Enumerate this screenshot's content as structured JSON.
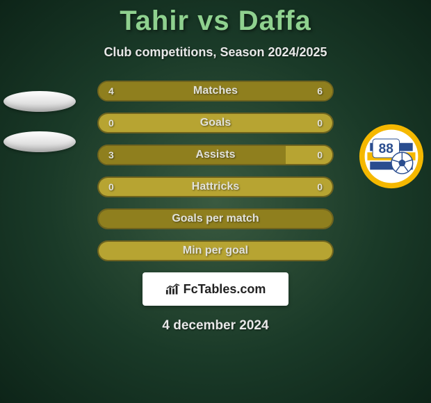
{
  "title": "Tahir vs Daffa",
  "subtitle": "Club competitions, Season 2024/2025",
  "date": "4 december 2024",
  "colors": {
    "bar_outer_bg": "#b7a432",
    "bar_border": "#6f631e",
    "bar_fill": "#8f7f1e",
    "title_color": "#8fd18f",
    "text_light": "#e8e8e8",
    "bar_text": "#e2e2da",
    "bg_center": "#3a5a40",
    "bg_mid": "#1a3a28",
    "bg_outer": "#0d2418"
  },
  "fctables": {
    "label": "FcTables.com"
  },
  "left_badge": {
    "type": "placeholder-ovals",
    "oval_count": 2
  },
  "right_badge": {
    "type": "club-crest",
    "crest": {
      "outer_ring": "#f5b800",
      "inner_bg": "#ffffff",
      "stripe_colors": [
        "#2a4d8f",
        "#f5b800"
      ],
      "number": "88",
      "number_color": "#2a4d8f",
      "ball_body": "#ffffff",
      "ball_panel": "#2a4d8f"
    }
  },
  "bars": [
    {
      "label": "Matches",
      "left_val": "4",
      "right_val": "6",
      "left_pct": 40,
      "right_pct": 60,
      "show_vals": true
    },
    {
      "label": "Goals",
      "left_val": "0",
      "right_val": "0",
      "left_pct": 0,
      "right_pct": 0,
      "show_vals": true
    },
    {
      "label": "Assists",
      "left_val": "3",
      "right_val": "0",
      "left_pct": 80,
      "right_pct": 0,
      "show_vals": true
    },
    {
      "label": "Hattricks",
      "left_val": "0",
      "right_val": "0",
      "left_pct": 0,
      "right_pct": 0,
      "show_vals": true
    },
    {
      "label": "Goals per match",
      "left_val": "",
      "right_val": "",
      "left_pct": 100,
      "right_pct": 0,
      "show_vals": false
    },
    {
      "label": "Min per goal",
      "left_val": "",
      "right_val": "",
      "left_pct": 0,
      "right_pct": 0,
      "show_vals": false
    }
  ]
}
